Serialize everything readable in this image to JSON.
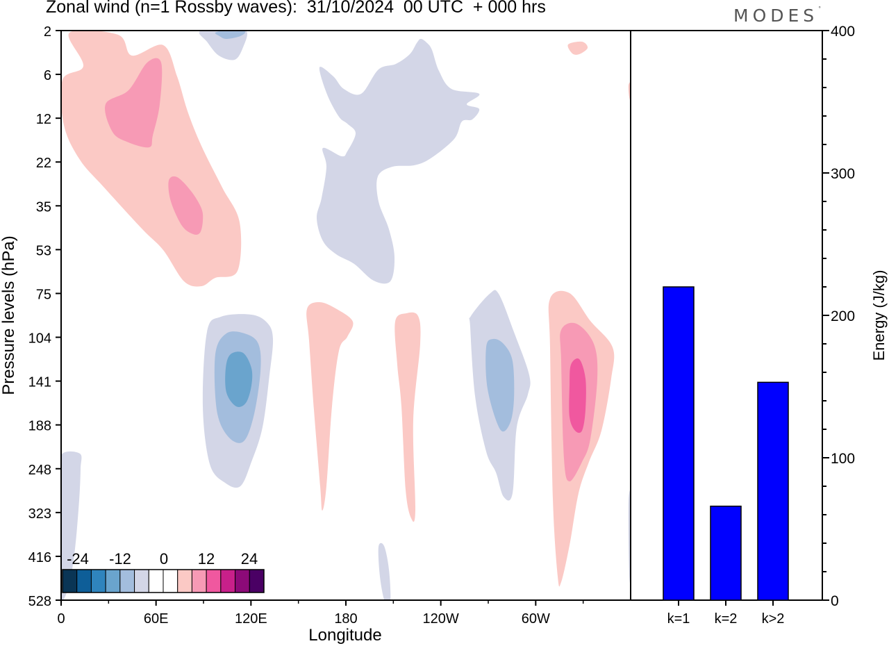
{
  "title": "Zonal wind (n=1 Rossby waves):  31/10/2024  00 UTC  + 000 hrs",
  "logo_text": "MODES",
  "chart_data": [
    {
      "type": "heatmap",
      "xlabel": "Longitude",
      "ylabel": "Pressure levels (hPa)",
      "x_ticks": [
        "0",
        "60E",
        "120E",
        "180",
        "120W",
        "60W"
      ],
      "y_ticks": [
        "2",
        "6",
        "12",
        "22",
        "35",
        "53",
        "75",
        "104",
        "141",
        "188",
        "248",
        "323",
        "416",
        "528"
      ],
      "colorbar": {
        "labels": [
          "-24",
          "-12",
          "0",
          "12",
          "24"
        ],
        "colors": [
          "#0a3555",
          "#0e5e98",
          "#2f84bd",
          "#6aa4cd",
          "#a3bddd",
          "#d3d6e7",
          "#ffffff",
          "#ffffff",
          "#fbc9c5",
          "#f79ab5",
          "#f0589f",
          "#c8208a",
          "#8c0a78",
          "#4a0064"
        ]
      },
      "regions": [
        {
          "level": -2,
          "color": "#d3d6e7",
          "x": [
            88,
            115,
            116,
            114,
            108,
            100,
            90,
            84,
            85
          ],
          "y": [
            655,
            653,
            675,
            720,
            790,
            840,
            866,
            865,
            700
          ]
        },
        {
          "level": 1,
          "color": "#fbc9c5",
          "x": [
            100,
            170,
            190,
            235,
            255,
            270,
            290,
            320,
            345,
            342,
            310,
            290,
            265,
            235,
            205,
            150,
            115,
            92,
            90,
            120
          ],
          "y": [
            47,
            50,
            80,
            65,
            110,
            160,
            210,
            270,
            320,
            390,
            400,
            412,
            405,
            360,
            330,
            270,
            230,
            180,
            115,
            95
          ]
        },
        {
          "level": 2,
          "color": "#f79ab5",
          "x": [
            152,
            185,
            212,
            232,
            230,
            220,
            215,
            185,
            162
          ],
          "y": [
            150,
            130,
            90,
            90,
            150,
            195,
            212,
            205,
            190
          ]
        },
        {
          "level": 2,
          "color": "#f79ab5",
          "x": [
            243,
            255,
            275,
            290,
            292,
            288,
            278,
            262,
            246
          ],
          "y": [
            260,
            255,
            275,
            300,
            318,
            335,
            337,
            325,
            290
          ]
        },
        {
          "level": -1,
          "color": "#d3d6e7",
          "x": [
            288,
            330,
            355,
            350,
            338,
            315,
            298
          ],
          "y": [
            45,
            43,
            45,
            68,
            86,
            80,
            60
          ]
        },
        {
          "level": -2,
          "color": "#a3bddd",
          "x": [
            310,
            325,
            352,
            346,
            326,
            316
          ],
          "y": [
            47,
            44,
            45,
            52,
            56,
            52
          ]
        },
        {
          "level": 1,
          "color": "#fbc9c5",
          "x": [
            818,
            838,
            846,
            834,
            824
          ],
          "y": [
            64,
            60,
            69,
            78,
            77
          ]
        },
        {
          "level": -1,
          "color": "#d3d6e7",
          "x": [
            460,
            480,
            495,
            520,
            545,
            570,
            590,
            600,
            606,
            615,
            622,
            632,
            650,
            690,
            672,
            690,
            680,
            665,
            654,
            620,
            596,
            565,
            544,
            545,
            560,
            568,
            562,
            538,
            510,
            484,
            465,
            456,
            463,
            470,
            465,
            492,
            500,
            512,
            500,
            488,
            471
          ],
          "y": [
            97,
            110,
            128,
            135,
            100,
            92,
            78,
            62,
            56,
            62,
            72,
            102,
            128,
            135,
            150,
            157,
            172,
            175,
            200,
            228,
            238,
            240,
            254,
            290,
            330,
            370,
            405,
            404,
            380,
            366,
            347,
            314,
            285,
            240,
            213,
            225,
            218,
            192,
            178,
            168,
            136
          ]
        },
        {
          "level": 1,
          "color": "#fbc9c5",
          "x": [
            905,
            910,
            910,
            906
          ],
          "y": [
            122,
            120,
            148,
            140
          ]
        },
        {
          "level": -1,
          "color": "#d3d6e7",
          "x": [
            318,
            362,
            385,
            393,
            388,
            378,
            362,
            346,
            324,
            302,
            292,
            298
          ],
          "y": [
            456,
            453,
            465,
            488,
            540,
            615,
            665,
            700,
            695,
            668,
            585,
            478
          ]
        },
        {
          "level": -2,
          "color": "#a3bddd",
          "x": [
            326,
            352,
            372,
            375,
            365,
            350,
            328,
            312,
            310
          ],
          "y": [
            480,
            480,
            495,
            535,
            600,
            636,
            628,
            590,
            510
          ]
        },
        {
          "level": -3,
          "color": "#6aa4cd",
          "x": [
            332,
            350,
            362,
            362,
            354,
            340,
            326,
            325
          ],
          "y": [
            510,
            508,
            530,
            555,
            580,
            585,
            565,
            530
          ]
        },
        {
          "level": 1,
          "color": "#fbc9c5",
          "x": [
            442,
            460,
            485,
            508,
            500,
            488,
            478,
            470,
            464,
            461,
            452,
            445
          ],
          "y": [
            445,
            435,
            445,
            463,
            485,
            505,
            585,
            700,
            735,
            700,
            590,
            490
          ]
        },
        {
          "level": 1,
          "color": "#fbc9c5",
          "x": [
            569,
            585,
            602,
            605,
            595,
            598,
            592,
            584,
            578,
            572
          ],
          "y": [
            463,
            451,
            455,
            495,
            605,
            735,
            746,
            705,
            585,
            525
          ]
        },
        {
          "level": -1,
          "color": "#d3d6e7",
          "x": [
            545,
            553,
            560,
            562,
            554,
            547
          ],
          "y": [
            787,
            786,
            820,
            866,
            866,
            830
          ]
        },
        {
          "level": -1,
          "color": "#d3d6e7",
          "x": [
            678,
            705,
            718,
            740,
            762,
            760,
            744,
            738,
            725,
            714,
            700,
            684,
            677
          ],
          "y": [
            455,
            423,
            423,
            478,
            540,
            568,
            615,
            710,
            715,
            680,
            650,
            570,
            470
          ]
        },
        {
          "level": -2,
          "color": "#a3bddd",
          "x": [
            700,
            710,
            725,
            738,
            740,
            734,
            720,
            702
          ],
          "y": [
            500,
            488,
            495,
            520,
            575,
            610,
            618,
            560
          ]
        },
        {
          "level": 1,
          "color": "#fbc9c5",
          "x": [
            792,
            820,
            850,
            882,
            880,
            866,
            848,
            833,
            820,
            808,
            803,
            796,
            792
          ],
          "y": [
            430,
            422,
            462,
            500,
            545,
            620,
            665,
            710,
            785,
            838,
            830,
            718,
            500
          ]
        },
        {
          "level": 2,
          "color": "#f79ab5",
          "x": [
            808,
            830,
            855,
            860,
            850,
            838,
            820,
            812,
            808
          ],
          "y": [
            475,
            466,
            495,
            545,
            632,
            665,
            693,
            660,
            520
          ]
        },
        {
          "level": 3,
          "color": "#f0589f",
          "x": [
            822,
            834,
            843,
            843,
            838,
            828,
            820,
            820
          ],
          "y": [
            525,
            517,
            545,
            590,
            620,
            620,
            600,
            555
          ]
        },
        {
          "level": -1,
          "color": "#d3d6e7",
          "x": [
            905,
            910,
            910,
            906
          ],
          "y": [
            720,
            718,
            830,
            828
          ]
        }
      ]
    },
    {
      "type": "bar",
      "categories": [
        "k=1",
        "k=2",
        "k>2"
      ],
      "values": [
        220,
        66,
        153
      ],
      "ylabel": "Energy (J/kg)",
      "ylim": [
        0,
        400
      ],
      "y_ticks": [
        0,
        100,
        200,
        300,
        400
      ],
      "bar_color": "#0000ff"
    }
  ]
}
